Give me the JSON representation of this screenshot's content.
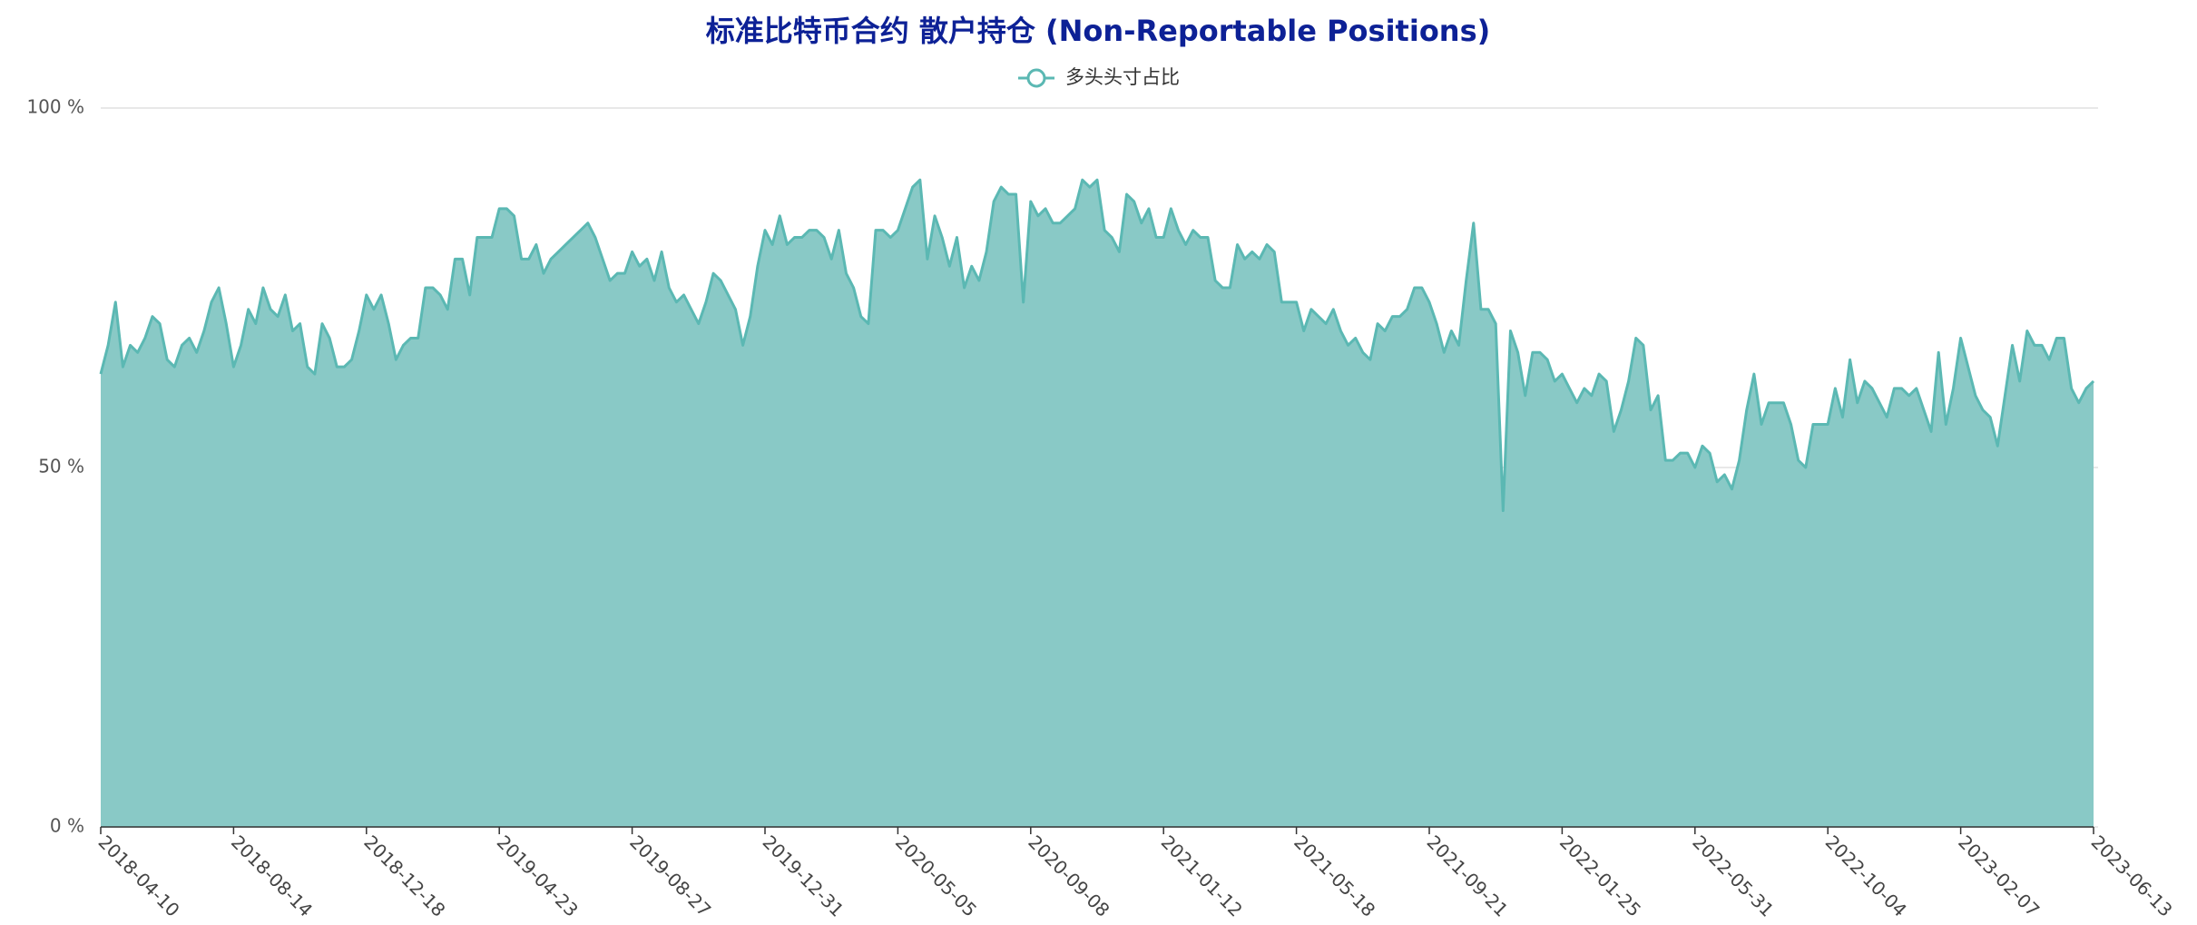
{
  "chart_data": {
    "type": "area",
    "title": "标准比特币合约 散户持仓 (Non-Reportable Positions)",
    "categories": [
      "2018-04-10",
      null,
      null,
      null,
      null,
      null,
      null,
      null,
      null,
      null,
      null,
      null,
      null,
      null,
      null,
      null,
      null,
      null,
      "2018-08-14",
      null,
      null,
      null,
      null,
      null,
      null,
      null,
      null,
      null,
      null,
      null,
      null,
      null,
      null,
      null,
      null,
      null,
      "2018-12-18",
      null,
      null,
      null,
      null,
      null,
      null,
      null,
      null,
      null,
      null,
      null,
      null,
      null,
      null,
      null,
      null,
      null,
      "2019-04-23",
      null,
      null,
      null,
      null,
      null,
      null,
      null,
      null,
      null,
      null,
      null,
      null,
      null,
      null,
      null,
      null,
      null,
      "2019-08-27",
      null,
      null,
      null,
      null,
      null,
      null,
      null,
      null,
      null,
      null,
      null,
      null,
      null,
      null,
      null,
      null,
      null,
      "2019-12-31",
      null,
      null,
      null,
      null,
      null,
      null,
      null,
      null,
      null,
      null,
      null,
      null,
      null,
      null,
      null,
      null,
      null,
      "2020-05-05",
      null,
      null,
      null,
      null,
      null,
      null,
      null,
      null,
      null,
      null,
      null,
      null,
      null,
      null,
      null,
      null,
      null,
      "2020-09-08",
      null,
      null,
      null,
      null,
      null,
      null,
      null,
      null,
      null,
      null,
      null,
      null,
      null,
      null,
      null,
      null,
      null,
      "2021-01-12",
      null,
      null,
      null,
      null,
      null,
      null,
      null,
      null,
      null,
      null,
      null,
      null,
      null,
      null,
      null,
      null,
      null,
      "2021-05-18",
      null,
      null,
      null,
      null,
      null,
      null,
      null,
      null,
      null,
      null,
      null,
      null,
      null,
      null,
      null,
      null,
      null,
      "2021-09-21",
      null,
      null,
      null,
      null,
      null,
      null,
      null,
      null,
      null,
      null,
      null,
      null,
      null,
      null,
      null,
      null,
      null,
      "2022-01-25",
      null,
      null,
      null,
      null,
      null,
      null,
      null,
      null,
      null,
      null,
      null,
      null,
      null,
      null,
      null,
      null,
      null,
      "2022-05-31",
      null,
      null,
      null,
      null,
      null,
      null,
      null,
      null,
      null,
      null,
      null,
      null,
      null,
      null,
      null,
      null,
      null,
      "2022-10-04",
      null,
      null,
      null,
      null,
      null,
      null,
      null,
      null,
      null,
      null,
      null,
      null,
      null,
      null,
      null,
      null,
      null,
      "2023-02-07",
      null,
      null,
      null,
      null,
      null,
      null,
      null,
      null,
      null,
      null,
      null,
      null,
      null,
      null,
      null,
      null,
      null,
      "2023-06-13"
    ],
    "series": [
      {
        "name": "多头头寸占比",
        "color": "#5bb8b3",
        "fill": "#89c9c6",
        "values": [
          63,
          67,
          73,
          64,
          67,
          66,
          68,
          71,
          70,
          65,
          64,
          67,
          68,
          66,
          69,
          73,
          75,
          70,
          64,
          67,
          72,
          70,
          75,
          72,
          71,
          74,
          69,
          70,
          64,
          63,
          70,
          68,
          64,
          64,
          65,
          69,
          74,
          72,
          74,
          70,
          65,
          67,
          68,
          68,
          75,
          75,
          74,
          72,
          79,
          79,
          74,
          82,
          82,
          82,
          86,
          86,
          85,
          79,
          79,
          81,
          77,
          79,
          80,
          81,
          82,
          83,
          84,
          82,
          79,
          76,
          77,
          77,
          80,
          78,
          79,
          76,
          80,
          75,
          73,
          74,
          72,
          70,
          73,
          77,
          76,
          74,
          72,
          67,
          71,
          78,
          83,
          81,
          85,
          81,
          82,
          82,
          83,
          83,
          82,
          79,
          83,
          77,
          75,
          71,
          70,
          83,
          83,
          82,
          83,
          86,
          89,
          90,
          79,
          85,
          82,
          78,
          82,
          75,
          78,
          76,
          80,
          87,
          89,
          88,
          88,
          73,
          87,
          85,
          86,
          84,
          84,
          85,
          86,
          90,
          89,
          90,
          83,
          82,
          80,
          88,
          87,
          84,
          86,
          82,
          82,
          86,
          83,
          81,
          83,
          82,
          82,
          76,
          75,
          75,
          81,
          79,
          80,
          79,
          81,
          80,
          73,
          73,
          73,
          69,
          72,
          71,
          70,
          72,
          69,
          67,
          68,
          66,
          65,
          70,
          69,
          71,
          71,
          72,
          75,
          75,
          73,
          70,
          66,
          69,
          67,
          76,
          84,
          72,
          72,
          70,
          44,
          69,
          66,
          60,
          66,
          66,
          65,
          62,
          63,
          61,
          59,
          61,
          60,
          63,
          62,
          55,
          58,
          62,
          68,
          67,
          58,
          60,
          51,
          51,
          52,
          52,
          50,
          53,
          52,
          48,
          49,
          47,
          51,
          58,
          63,
          56,
          59,
          59,
          59,
          56,
          51,
          50,
          56,
          56,
          56,
          61,
          57,
          65,
          59,
          62,
          61,
          59,
          57,
          61,
          61,
          60,
          61,
          58,
          55,
          66,
          56,
          61,
          68,
          64,
          60,
          58,
          57,
          53,
          60,
          67,
          62,
          69,
          67,
          67,
          65,
          68,
          68,
          61,
          59,
          61,
          62
        ]
      }
    ],
    "ylim": [
      0,
      100
    ],
    "yticks": [
      {
        "value": 0,
        "label": "0 %"
      },
      {
        "value": 50,
        "label": "50 %"
      },
      {
        "value": 100,
        "label": "100 %"
      }
    ],
    "grid": true
  }
}
